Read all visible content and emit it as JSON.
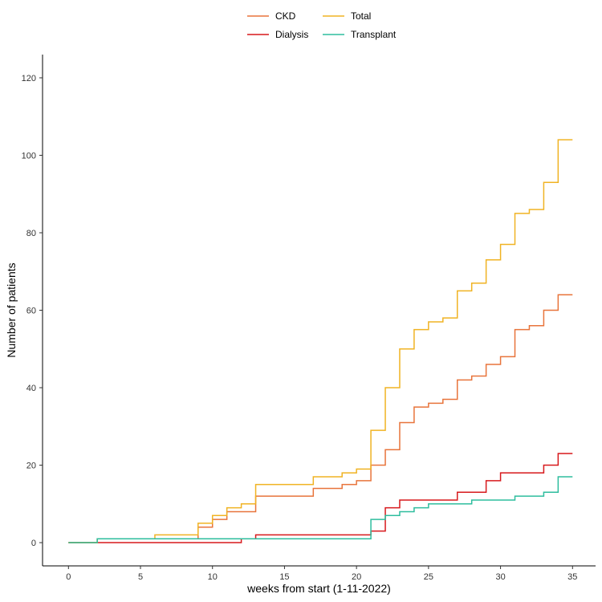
{
  "chart_data": {
    "type": "line",
    "step": true,
    "xlabel": "weeks from start (1-11-2022)",
    "ylabel": "Number of patients",
    "xlim": [
      -1.8,
      36.6
    ],
    "ylim": [
      -6,
      126
    ],
    "xticks": [
      0,
      5,
      10,
      15,
      20,
      25,
      30,
      35
    ],
    "yticks": [
      0,
      20,
      40,
      60,
      80,
      100,
      120
    ],
    "grid": false,
    "legend_position": "top",
    "series": [
      {
        "name": "CKD",
        "color": "#E8743B",
        "x": [
          0,
          2,
          6,
          9,
          10,
          11,
          13,
          17,
          19,
          20,
          21,
          22,
          23,
          24,
          25,
          26,
          27,
          28,
          29,
          30,
          31,
          32,
          33,
          34,
          35
        ],
        "y": [
          0,
          1,
          1,
          4,
          6,
          8,
          12,
          14,
          15,
          16,
          20,
          24,
          31,
          35,
          36,
          37,
          42,
          43,
          46,
          48,
          55,
          56,
          60,
          64,
          64
        ]
      },
      {
        "name": "Dialysis",
        "color": "#D7191C",
        "x": [
          0,
          12,
          13,
          21,
          22,
          23,
          27,
          29,
          30,
          33,
          34,
          35
        ],
        "y": [
          0,
          1,
          2,
          3,
          9,
          11,
          13,
          16,
          18,
          20,
          23,
          23
        ]
      },
      {
        "name": "Total",
        "color": "#F0B323",
        "x": [
          0,
          2,
          6,
          9,
          10,
          11,
          12,
          13,
          17,
          19,
          20,
          21,
          22,
          23,
          24,
          25,
          26,
          27,
          28,
          29,
          30,
          31,
          32,
          33,
          34,
          35
        ],
        "y": [
          0,
          1,
          2,
          5,
          7,
          9,
          10,
          15,
          17,
          18,
          19,
          29,
          40,
          50,
          55,
          57,
          58,
          65,
          67,
          73,
          77,
          85,
          86,
          93,
          104,
          104
        ]
      },
      {
        "name": "Transplant",
        "color": "#2EBD9E",
        "x": [
          0,
          2,
          21,
          22,
          23,
          24,
          25,
          28,
          31,
          33,
          34,
          35
        ],
        "y": [
          0,
          1,
          6,
          7,
          8,
          9,
          10,
          11,
          12,
          13,
          17,
          17
        ]
      }
    ]
  }
}
